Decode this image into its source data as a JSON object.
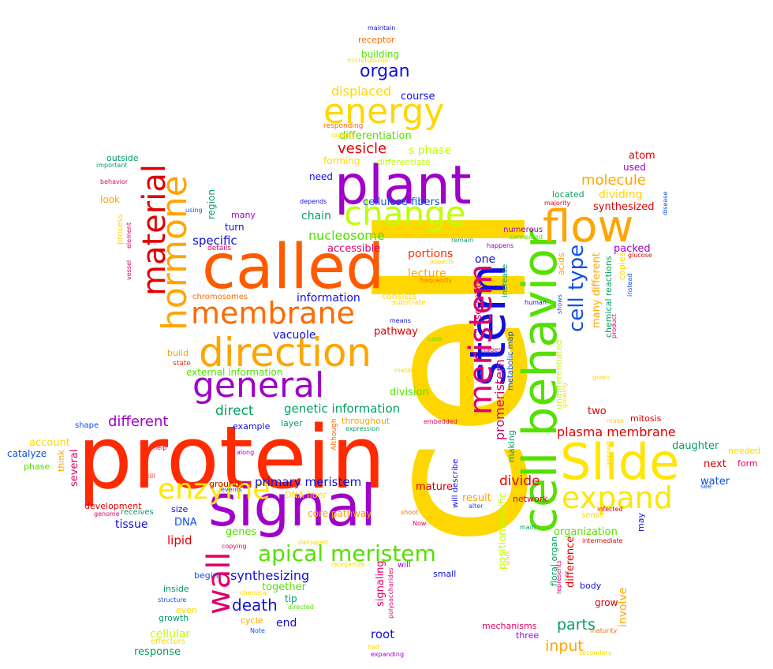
{
  "words": [
    {
      "text": "cell",
      "color": "#ffd700",
      "rot": -90
    },
    {
      "text": "protein",
      "color": "#ff2a00"
    },
    {
      "text": "called",
      "color": "#ff5a00"
    },
    {
      "text": "signal",
      "color": "#a000c8"
    },
    {
      "text": "plant",
      "color": "#a000c8"
    },
    {
      "text": "cell behavior",
      "color": "#55e000",
      "rot": -90
    },
    {
      "text": "stem",
      "color": "#1010dc",
      "rot": -90
    },
    {
      "text": "Slide",
      "color": "#ffe600"
    },
    {
      "text": "flow",
      "color": "#ffa500"
    },
    {
      "text": "direction",
      "color": "#ffa500"
    },
    {
      "text": "general",
      "color": "#a000c8"
    },
    {
      "text": "change",
      "color": "#bfff00"
    },
    {
      "text": "energy",
      "color": "#ffd700"
    },
    {
      "text": "membrane",
      "color": "#ff6a00"
    },
    {
      "text": "hormone",
      "color": "#ffa500",
      "rot": -90
    },
    {
      "text": "material",
      "color": "#e00000",
      "rot": -90
    },
    {
      "text": "wall",
      "color": "#e0006a",
      "rot": -90
    },
    {
      "text": "meristem",
      "color": "#e0006a",
      "rot": -90
    },
    {
      "text": "expand",
      "color": "#ffe600"
    },
    {
      "text": "enzyme",
      "color": "#ffe600"
    },
    {
      "text": "apical meristem",
      "color": "#55e000"
    },
    {
      "text": "cell type",
      "color": "#1050e0",
      "rot": -90
    },
    {
      "text": "organ",
      "color": "#1010dc"
    },
    {
      "text": "vesicle",
      "color": "#e00000"
    },
    {
      "text": "s phase",
      "color": "#bfff00"
    },
    {
      "text": "displaced",
      "color": "#ffd700"
    },
    {
      "text": "differentiation",
      "color": "#55e000"
    },
    {
      "text": "differentiate",
      "color": "#bfff00"
    },
    {
      "text": "forming",
      "color": "#ffd700"
    },
    {
      "text": "course",
      "color": "#1010dc"
    },
    {
      "text": "building",
      "color": "#55e000"
    },
    {
      "text": "receptor",
      "color": "#ff6a00"
    },
    {
      "text": "maintain",
      "color": "#1010dc"
    },
    {
      "text": "microtubules",
      "color": "#ffd700"
    },
    {
      "text": "responding",
      "color": "#ff6a00"
    },
    {
      "text": "organic",
      "color": "#ffd700"
    },
    {
      "text": "nucleosome",
      "color": "#55e000"
    },
    {
      "text": "cellulose fibers",
      "color": "#1050e0"
    },
    {
      "text": "chain",
      "color": "#00a060"
    },
    {
      "text": "need",
      "color": "#1010dc"
    },
    {
      "text": "depends",
      "color": "#1010dc"
    },
    {
      "text": "accessible",
      "color": "#e0006a"
    },
    {
      "text": "portions",
      "color": "#ff2a00"
    },
    {
      "text": "lecture",
      "color": "#ffa500"
    },
    {
      "text": "one",
      "color": "#1010dc"
    },
    {
      "text": "information",
      "color": "#1010dc"
    },
    {
      "text": "consists",
      "color": "#ffd700"
    },
    {
      "text": "substrate",
      "color": "#ffd700"
    },
    {
      "text": "frequently",
      "color": "#ff6a00"
    },
    {
      "text": "aspects",
      "color": "#ffd700"
    },
    {
      "text": "remain",
      "color": "#00a060"
    },
    {
      "text": "happens",
      "color": "#a000c8"
    },
    {
      "text": "connected",
      "color": "#55e000"
    },
    {
      "text": "numerous",
      "color": "#a000c8"
    },
    {
      "text": "means",
      "color": "#1010dc"
    },
    {
      "text": "pathway",
      "color": "#e00000"
    },
    {
      "text": "vacuole",
      "color": "#1010dc"
    },
    {
      "text": "case",
      "color": "#55e000"
    },
    {
      "text": "specific",
      "color": "#1010dc"
    },
    {
      "text": "details",
      "color": "#e0006a"
    },
    {
      "text": "turn",
      "color": "#1010dc"
    },
    {
      "text": "many",
      "color": "#a000c8"
    },
    {
      "text": "region",
      "color": "#00a060",
      "rot": -90
    },
    {
      "text": "using",
      "color": "#1050e0"
    },
    {
      "text": "behavior",
      "color": "#e0006a"
    },
    {
      "text": "important",
      "color": "#00a060"
    },
    {
      "text": "outside",
      "color": "#00a060"
    },
    {
      "text": "look",
      "color": "#ffa500"
    },
    {
      "text": "process",
      "color": "#ffd700",
      "rot": -90
    },
    {
      "text": "element",
      "color": "#e0006a",
      "rot": -90
    },
    {
      "text": "vessel",
      "color": "#e0006a",
      "rot": -90
    },
    {
      "text": "chromosomes",
      "color": "#ff6a00"
    },
    {
      "text": "build",
      "color": "#ffa500"
    },
    {
      "text": "state",
      "color": "#ff2a00"
    },
    {
      "text": "external information",
      "color": "#55e000"
    },
    {
      "text": "direct",
      "color": "#00a060"
    },
    {
      "text": "genetic information",
      "color": "#00a060"
    },
    {
      "text": "division",
      "color": "#55e000"
    },
    {
      "text": "different",
      "color": "#a000c8"
    },
    {
      "text": "example",
      "color": "#1010dc"
    },
    {
      "text": "layer",
      "color": "#00a060"
    },
    {
      "text": "throughout",
      "color": "#ffa500"
    },
    {
      "text": "expression",
      "color": "#00a060"
    },
    {
      "text": "embedded",
      "color": "#e0006a"
    },
    {
      "text": "Although",
      "color": "#ff6a00",
      "rot": -90
    },
    {
      "text": "shape",
      "color": "#1050e0"
    },
    {
      "text": "account",
      "color": "#ffd700"
    },
    {
      "text": "catalyze",
      "color": "#1050e0"
    },
    {
      "text": "phase",
      "color": "#55e000"
    },
    {
      "text": "think",
      "color": "#ffa500",
      "rot": -90
    },
    {
      "text": "several",
      "color": "#e0006a",
      "rot": -90
    },
    {
      "text": "help",
      "color": "#e0006a"
    },
    {
      "text": "kill",
      "color": "#ff2a00"
    },
    {
      "text": "along",
      "color": "#a000c8"
    },
    {
      "text": "primary meristem",
      "color": "#1010dc"
    },
    {
      "text": "ground",
      "color": "#e00000"
    },
    {
      "text": "events",
      "color": "#1050e0"
    },
    {
      "text": "DNA fiber",
      "color": "#ffd700"
    },
    {
      "text": "mature",
      "color": "#e00000"
    },
    {
      "text": "development",
      "color": "#e00000"
    },
    {
      "text": "size",
      "color": "#1010dc"
    },
    {
      "text": "receives",
      "color": "#00a060"
    },
    {
      "text": "genome",
      "color": "#e0006a"
    },
    {
      "text": "tissue",
      "color": "#1010dc"
    },
    {
      "text": "DNA",
      "color": "#1050e0"
    },
    {
      "text": "genes",
      "color": "#55e000"
    },
    {
      "text": "core pathway",
      "color": "#ffa500"
    },
    {
      "text": "lipid",
      "color": "#e00000"
    },
    {
      "text": "copying",
      "color": "#e0006a"
    },
    {
      "text": "damaged",
      "color": "#ffd700"
    },
    {
      "text": "reorganize",
      "color": "#ffd700"
    },
    {
      "text": "synthesizing",
      "color": "#1010dc"
    },
    {
      "text": "together",
      "color": "#55e000"
    },
    {
      "text": "death",
      "color": "#1010dc"
    },
    {
      "text": "tip",
      "color": "#00a060"
    },
    {
      "text": "begin",
      "color": "#1050e0"
    },
    {
      "text": "inside",
      "color": "#00a060"
    },
    {
      "text": "structure",
      "color": "#1050e0"
    },
    {
      "text": "growth",
      "color": "#00a060"
    },
    {
      "text": "even",
      "color": "#ffd700"
    },
    {
      "text": "chemical",
      "color": "#ffd700"
    },
    {
      "text": "directed",
      "color": "#55e000"
    },
    {
      "text": "end",
      "color": "#1010dc"
    },
    {
      "text": "cycle",
      "color": "#ffa500"
    },
    {
      "text": "Note",
      "color": "#1050e0"
    },
    {
      "text": "cellular",
      "color": "#bfff00"
    },
    {
      "text": "effectors",
      "color": "#ffd700"
    },
    {
      "text": "response",
      "color": "#00a060"
    },
    {
      "text": "root",
      "color": "#1010dc"
    },
    {
      "text": "half",
      "color": "#ffd700"
    },
    {
      "text": "expanding",
      "color": "#a000c8"
    },
    {
      "text": "signaling",
      "color": "#e0006a",
      "rot": -90
    },
    {
      "text": "polysaccharides",
      "color": "#e0006a",
      "rot": -90
    },
    {
      "text": "will",
      "color": "#a000c8"
    },
    {
      "text": "small",
      "color": "#1010dc"
    },
    {
      "text": "shoot",
      "color": "#ff6a00"
    },
    {
      "text": "Now",
      "color": "#e0006a"
    },
    {
      "text": "will describe",
      "color": "#1010dc",
      "rot": -90
    },
    {
      "text": "result",
      "color": "#ffa500"
    },
    {
      "text": "divide",
      "color": "#e00000"
    },
    {
      "text": "promeristem",
      "color": "#e0006a",
      "rot": -90
    },
    {
      "text": "secretion",
      "color": "#e0006a",
      "rot": -90
    },
    {
      "text": "increase",
      "color": "#00a060",
      "rot": -90
    },
    {
      "text": "metabolic map",
      "color": "#1050e0",
      "rot": -90
    },
    {
      "text": "stages",
      "color": "#e0006a"
    },
    {
      "text": "metabolic",
      "color": "#ffd700"
    },
    {
      "text": "alter",
      "color": "#1050e0"
    },
    {
      "text": "making",
      "color": "#00a060",
      "rot": -90
    },
    {
      "text": "position",
      "color": "#bfff00",
      "rot": -90
    },
    {
      "text": "specific",
      "color": "#bfff00",
      "rot": -90
    },
    {
      "text": "main",
      "color": "#00a060"
    },
    {
      "text": "network",
      "color": "#e00000"
    },
    {
      "text": "mechanisms",
      "color": "#e0006a"
    },
    {
      "text": "three",
      "color": "#a000c8"
    },
    {
      "text": "work",
      "color": "#ffd700",
      "rot": -90
    },
    {
      "text": "floral organ",
      "color": "#00a060",
      "rot": -90
    },
    {
      "text": "difference",
      "color": "#e00000",
      "rot": -90
    },
    {
      "text": "parts",
      "color": "#00a060"
    },
    {
      "text": "input",
      "color": "#ffa500"
    },
    {
      "text": "involve",
      "color": "#ffa500",
      "rot": -90
    },
    {
      "text": "represents",
      "color": "#e0006a",
      "rot": -90
    },
    {
      "text": "maturity",
      "color": "#ff6a00"
    },
    {
      "text": "secondary",
      "color": "#ffd700"
    },
    {
      "text": "body",
      "color": "#1010dc"
    },
    {
      "text": "grow",
      "color": "#e00000"
    },
    {
      "text": "intermediate",
      "color": "#e00000"
    },
    {
      "text": "organization",
      "color": "#55e000"
    },
    {
      "text": "sense",
      "color": "#ffd700"
    },
    {
      "text": "infected",
      "color": "#e00000"
    },
    {
      "text": "may",
      "color": "#1010dc",
      "rot": -90
    },
    {
      "text": "plasma membrane",
      "color": "#e00000"
    },
    {
      "text": "two",
      "color": "#e00000"
    },
    {
      "text": "make",
      "color": "#ffd700"
    },
    {
      "text": "mitosis",
      "color": "#e00000"
    },
    {
      "text": "respond",
      "color": "#ffd700",
      "rot": -90
    },
    {
      "text": "daughter",
      "color": "#00a060"
    },
    {
      "text": "next",
      "color": "#e00000"
    },
    {
      "text": "needed",
      "color": "#ffd700"
    },
    {
      "text": "form",
      "color": "#e0006a"
    },
    {
      "text": "water",
      "color": "#1050e0"
    },
    {
      "text": "see",
      "color": "#1050e0"
    },
    {
      "text": "given",
      "color": "#ffd700"
    },
    {
      "text": "undifferentiated",
      "color": "#bfff00",
      "rot": -90
    },
    {
      "text": "growing",
      "color": "#ffd700",
      "rot": -90
    },
    {
      "text": "acids",
      "color": "#ffa500",
      "rot": -90
    },
    {
      "text": "human",
      "color": "#1010dc"
    },
    {
      "text": "shows",
      "color": "#1050e0",
      "rot": -90
    },
    {
      "text": "many different",
      "color": "#ffa500",
      "rot": -90
    },
    {
      "text": "chemical reactions",
      "color": "#00a060",
      "rot": -90
    },
    {
      "text": "product",
      "color": "#e0006a",
      "rot": -90
    },
    {
      "text": "copies",
      "color": "#ffd700",
      "rot": -90
    },
    {
      "text": "instead",
      "color": "#1050e0",
      "rot": -90
    },
    {
      "text": "packed",
      "color": "#a000c8"
    },
    {
      "text": "glucose",
      "color": "#e00000"
    },
    {
      "text": "molecule",
      "color": "#ffa500"
    },
    {
      "text": "dividing",
      "color": "#ffd700"
    },
    {
      "text": "located",
      "color": "#00a060"
    },
    {
      "text": "majority",
      "color": "#e00000"
    },
    {
      "text": "synthesized",
      "color": "#e00000"
    },
    {
      "text": "used",
      "color": "#a000c8"
    },
    {
      "text": "atom",
      "color": "#e00000"
    },
    {
      "text": "disease",
      "color": "#1050e0",
      "rot": -90
    }
  ]
}
